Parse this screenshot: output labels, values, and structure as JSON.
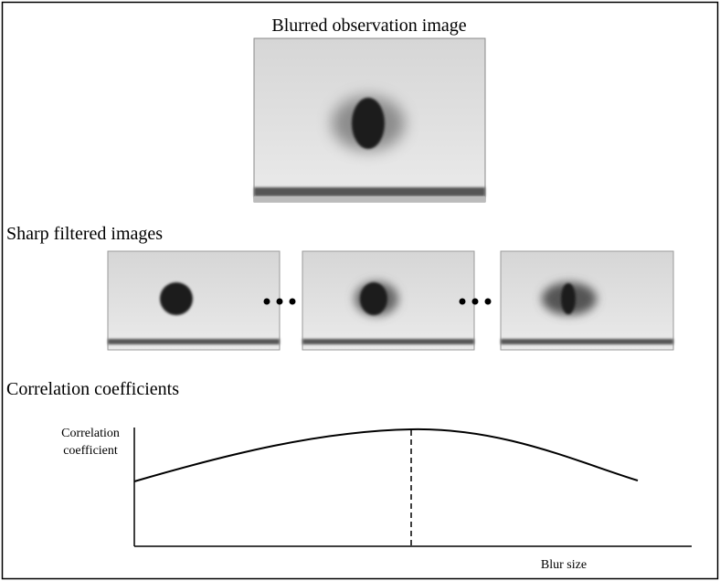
{
  "header": {
    "title": "Blurred observation image"
  },
  "sections": {
    "sharp": "Sharp filtered images",
    "correlation": "Correlation coefficients"
  },
  "plot": {
    "y_label_lines": [
      "Correlation",
      "coefficient"
    ],
    "x_label": "Blur size"
  }
}
